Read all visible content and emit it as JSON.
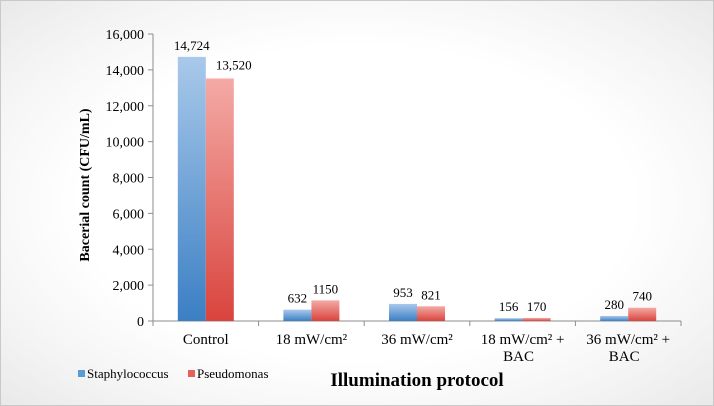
{
  "chart_data": {
    "type": "bar",
    "title": "",
    "xlabel": "Illumination protocol",
    "ylabel": "Bacerial count (CFU/mL)",
    "ylim": [
      0,
      16000
    ],
    "yticks": [
      "0",
      "2,000",
      "4,000",
      "6,000",
      "8,000",
      "10,000",
      "12,000",
      "14,000",
      "16,000"
    ],
    "ytick_values": [
      0,
      2000,
      4000,
      6000,
      8000,
      10000,
      12000,
      14000,
      16000
    ],
    "grid": false,
    "legend_position": "bottom-left",
    "categories": [
      {
        "line1": "Control",
        "line2": ""
      },
      {
        "line1": "18 mW/cm²",
        "line2": ""
      },
      {
        "line1": "36 mW/cm²",
        "line2": ""
      },
      {
        "line1": "18 mW/cm² +",
        "line2": "BAC"
      },
      {
        "line1": "36 mW/cm² +",
        "line2": "BAC"
      }
    ],
    "series": [
      {
        "name": "Staphylococcus",
        "color": "#5b9bd5",
        "values": [
          14724,
          632,
          953,
          156,
          280
        ],
        "labels": [
          "14,724",
          "632",
          "953",
          "156",
          "280"
        ]
      },
      {
        "name": "Pseudomonas",
        "color": "#e8605a",
        "values": [
          13520,
          1150,
          821,
          170,
          740
        ],
        "labels": [
          "13,520",
          "1150",
          "821",
          "170",
          "740"
        ]
      }
    ]
  }
}
